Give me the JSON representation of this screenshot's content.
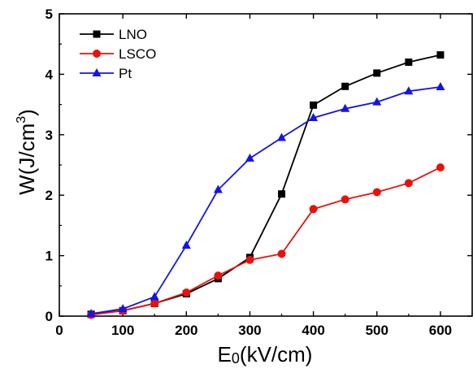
{
  "chart_data": {
    "type": "line",
    "title": "",
    "xlabel": {
      "main": "E",
      "sub": "0",
      "rest": "(kV/cm)"
    },
    "ylabel": {
      "main": "W(J/cm",
      "sup": "3",
      "rest": ")"
    },
    "xlim": [
      0,
      650
    ],
    "ylim": [
      0,
      5
    ],
    "x_ticks": [
      0,
      100,
      200,
      300,
      400,
      500,
      600
    ],
    "y_ticks": [
      0,
      1,
      2,
      3,
      4,
      5
    ],
    "x": [
      50,
      100,
      150,
      200,
      250,
      300,
      350,
      400,
      450,
      500,
      550,
      600
    ],
    "legend_position": "top-left",
    "grid": false,
    "series": [
      {
        "name": "LNO",
        "color": "#000000",
        "marker": "square",
        "values": [
          0.03,
          0.09,
          0.21,
          0.37,
          0.62,
          0.97,
          2.02,
          3.49,
          3.8,
          4.02,
          4.2,
          4.32
        ]
      },
      {
        "name": "LSCO",
        "color": "#e8120c",
        "marker": "circle",
        "values": [
          0.02,
          0.09,
          0.21,
          0.39,
          0.67,
          0.93,
          1.03,
          1.77,
          1.93,
          2.05,
          2.2,
          2.46
        ]
      },
      {
        "name": "Pt",
        "color": "#1414e6",
        "marker": "triangle",
        "values": [
          0.04,
          0.12,
          0.32,
          1.17,
          2.09,
          2.61,
          2.95,
          3.28,
          3.43,
          3.54,
          3.72,
          3.79
        ]
      }
    ]
  }
}
